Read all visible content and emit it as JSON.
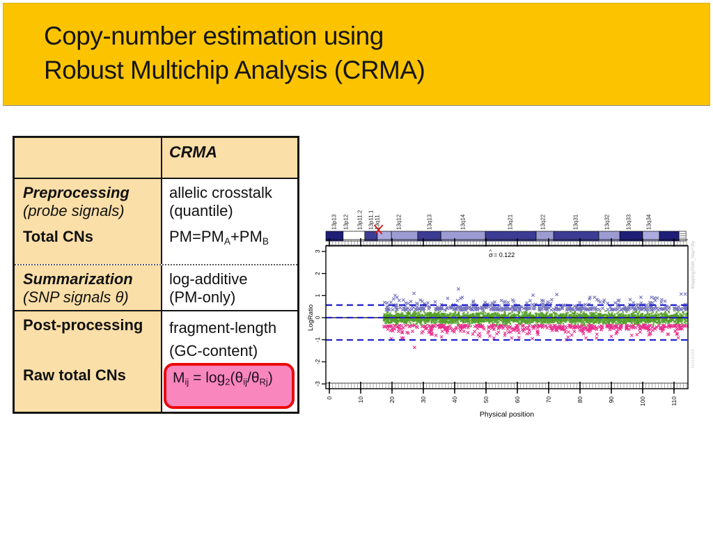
{
  "slide": {
    "title_line1": "Copy-number estimation using",
    "title_line2": "Robust Multichip Analysis (CRMA)",
    "banner_color": "#FCC400"
  },
  "table": {
    "header": {
      "blank": "",
      "method": "CRMA"
    },
    "rows": {
      "preprocessing": {
        "label": "Preprocessing",
        "label_note": "(probe signals)",
        "value_line1": "allelic crosstalk",
        "value_line2": "(quantile)"
      },
      "total_cns": {
        "label": "Total CNs",
        "value_pm": "PM=PM",
        "value_sub_a": "A",
        "value_plus": "+PM",
        "value_sub_b": "B"
      },
      "summarization": {
        "label": "Summarization",
        "label_note": "(SNP signals θ)",
        "value_line1": "log-additive",
        "value_line2": "(PM-only)"
      },
      "post_processing": {
        "label": "Post-processing",
        "value_line1": "fragment-length",
        "value_line2": "(GC-content)"
      },
      "raw_total_cns": {
        "label": "Raw total CNs",
        "formula": {
          "m": "M",
          "m_sub": "ij",
          "eq": " = log",
          "log_sub": "2",
          "open": "(",
          "theta1": "θ",
          "theta1_sub": "ij",
          "slash": "/",
          "theta2": "θ",
          "theta2_sub": "Rj",
          "close": ")"
        }
      }
    }
  },
  "chart_data": {
    "type": "scatter",
    "xlabel": "Physical position",
    "ylabel": "LogRatio",
    "annotation": {
      "symbol": "σ",
      "hat": "^",
      "text": "= 0.122",
      "value": 0.122
    },
    "xlim": [
      0,
      115
    ],
    "ylim": [
      -3.2,
      3.25
    ],
    "x_ticks": [
      0,
      10,
      20,
      30,
      40,
      50,
      60,
      70,
      80,
      90,
      100,
      110
    ],
    "y_ticks": [
      -3,
      -2,
      -1,
      0,
      1,
      2,
      3
    ],
    "solid_line_y": 0,
    "dashed_lines_y": [
      0.57,
      0,
      -1.01
    ],
    "dashed_color": "#2222CC",
    "data_x_range": [
      17.3,
      114.3
    ],
    "series": [
      {
        "name": "snp-logratio-core",
        "color": "#549F2A",
        "marker": "x",
        "size": 1.3,
        "n": 3000,
        "y_mean": -0.03,
        "y_sd": 0.13,
        "y_clip": [
          -0.43,
          0.38
        ],
        "extra_points": []
      },
      {
        "name": "outliers-gain",
        "color": "#7575BC",
        "marker": "x",
        "size": 2.1,
        "n": 430,
        "y_base": 0.345,
        "y_scale": 0.13,
        "y_max_extra": 0.58,
        "extra_points": [
          [
            20.5,
            0.85
          ],
          [
            21.0,
            1.0
          ],
          [
            21.6,
            0.92
          ],
          [
            22.3,
            0.78
          ],
          [
            27.0,
            1.1
          ],
          [
            41.2,
            1.3
          ],
          [
            46.0,
            0.75
          ],
          [
            52.8,
            0.72
          ],
          [
            58.5,
            0.8
          ],
          [
            65.0,
            1.02
          ],
          [
            67.8,
            0.78
          ],
          [
            72.6,
            1.05
          ],
          [
            83.0,
            0.85
          ],
          [
            87.5,
            0.7
          ],
          [
            96.0,
            0.82
          ],
          [
            104.0,
            0.78
          ],
          [
            112.3,
            1.07
          ],
          [
            113.6,
            1.07
          ]
        ]
      },
      {
        "name": "outliers-loss",
        "color": "#E8308E",
        "marker": "x",
        "size": 2.1,
        "n": 430,
        "y_base": -0.345,
        "y_scale": 0.13,
        "y_max_extra": 0.58,
        "extra_points": [
          [
            19.8,
            -0.95
          ],
          [
            27.2,
            -1.35
          ],
          [
            34.0,
            -0.8
          ],
          [
            48.0,
            -0.85
          ],
          [
            56.0,
            -0.8
          ],
          [
            60.5,
            -0.9
          ],
          [
            64.8,
            -0.95
          ],
          [
            75.6,
            -1.0
          ],
          [
            76.2,
            -0.88
          ],
          [
            90.0,
            -0.85
          ],
          [
            96.5,
            -0.8
          ],
          [
            102.0,
            -0.78
          ],
          [
            108.0,
            -0.75
          ]
        ]
      }
    ],
    "ideogram": {
      "labels": [
        {
          "text": "13p13",
          "x": 1.6
        },
        {
          "text": "13p12",
          "x": 5.3
        },
        {
          "text": "13p11.2",
          "x": 9.8
        },
        {
          "text": "13p11.1",
          "x": 13.3
        },
        {
          "text": "13q11",
          "x": 15.3
        },
        {
          "text": "13q12",
          "x": 22.2
        },
        {
          "text": "13q13",
          "x": 32.0
        },
        {
          "text": "13q14",
          "x": 42.7
        },
        {
          "text": "13q21",
          "x": 57.8
        },
        {
          "text": "13q22",
          "x": 68.2
        },
        {
          "text": "13q31",
          "x": 78.7
        },
        {
          "text": "13q32",
          "x": 88.7
        },
        {
          "text": "13q33",
          "x": 95.6
        },
        {
          "text": "13q34",
          "x": 102.0
        }
      ],
      "bands": [
        {
          "from": -1.1,
          "to": 4.4,
          "style": "navy"
        },
        {
          "from": 4.4,
          "to": 11.3,
          "style": "white"
        },
        {
          "from": 11.3,
          "to": 15.3,
          "style": "navy2"
        },
        {
          "from": 15.3,
          "to": 19.8,
          "style": "lav"
        },
        {
          "from": 19.8,
          "to": 28.2,
          "style": "lav2"
        },
        {
          "from": 28.2,
          "to": 35.6,
          "style": "navy2"
        },
        {
          "from": 35.6,
          "to": 49.8,
          "style": "lav2"
        },
        {
          "from": 49.8,
          "to": 66.0,
          "style": "navy2"
        },
        {
          "from": 66.0,
          "to": 71.6,
          "style": "lav2"
        },
        {
          "from": 71.6,
          "to": 86.0,
          "style": "navy2"
        },
        {
          "from": 86.0,
          "to": 92.7,
          "style": "lav2"
        },
        {
          "from": 92.7,
          "to": 100.0,
          "style": "navy"
        },
        {
          "from": 100.0,
          "to": 105.3,
          "style": "lav"
        },
        {
          "from": 105.3,
          "to": 111.6,
          "style": "navy"
        },
        {
          "from": 111.6,
          "to": 113.8,
          "style": "grid"
        }
      ],
      "centromere_marker_x": 15.7,
      "marker_color": "#E41414"
    },
    "side_labels": {
      "top": "Mapping250K_Nsp+Sty",
      "bottom": "NA19156"
    }
  }
}
